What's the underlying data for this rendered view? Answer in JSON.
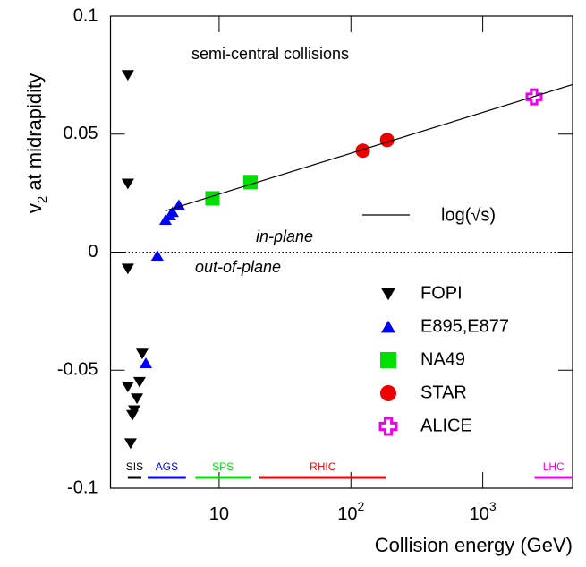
{
  "chart_data": {
    "type": "scatter",
    "log_x": true,
    "xlabel": "Collision energy (GeV)",
    "ylabel": {
      "text": "v",
      "sub": "2",
      "rest": " at midrapidity"
    },
    "xlim": [
      1.5,
      4800
    ],
    "ylim": [
      -0.1,
      0.1
    ],
    "xticks": [
      10,
      {
        "value": 100,
        "label": "10",
        "exponent": "2"
      },
      {
        "value": 1000,
        "label": "10",
        "exponent": "3"
      }
    ],
    "yticks": [
      -0.1,
      -0.05,
      0,
      0.05,
      0.1
    ],
    "annotations": [
      "semi-central collisions",
      "in-plane",
      "out-of-plane"
    ],
    "series": [
      {
        "name": "FOPI",
        "color": "#000000",
        "marker": "triangle-down",
        "x": [
          2.03,
          2.03,
          2.03,
          2.03,
          2.2,
          2.27,
          2.38,
          2.49,
          2.61,
          2.13
        ],
        "values": [
          0.075,
          0.029,
          -0.007,
          -0.057,
          -0.069,
          -0.067,
          -0.062,
          -0.055,
          -0.043,
          -0.081
        ]
      },
      {
        "name": "E895,E877",
        "color": "#0000ff",
        "marker": "triangle-up",
        "x": [
          3.4,
          2.78,
          3.92,
          4.24,
          4.44,
          4.95
        ],
        "values": [
          -0.0015,
          -0.047,
          0.0137,
          0.0156,
          0.017,
          0.02
        ]
      },
      {
        "name": "NA49",
        "color": "#00e000",
        "marker": "square",
        "x": [
          8.9,
          17.3
        ],
        "values": [
          0.0228,
          0.0297
        ]
      },
      {
        "name": "STAR",
        "color": "#ee0000",
        "marker": "circle",
        "x": [
          123,
          188
        ],
        "values": [
          0.043,
          0.0475
        ]
      },
      {
        "name": "ALICE",
        "color": "#ee00ee",
        "marker": "cross",
        "x": [
          2450
        ],
        "values": [
          0.0658
        ]
      },
      {
        "name": "log(√s)",
        "color": "#000000",
        "marker": "line",
        "x": [
          3.9,
          4800
        ],
        "values": [
          0.0175,
          0.071
        ]
      }
    ],
    "ranges": [
      {
        "label": "SIS",
        "color": "#000000",
        "x": [
          2.03,
          2.57
        ]
      },
      {
        "label": "AGS",
        "color": "#0000ff",
        "x": [
          2.87,
          5.6
        ]
      },
      {
        "label": "SPS",
        "color": "#00e000",
        "x": [
          6.6,
          17.3
        ]
      },
      {
        "label": "RHIC",
        "color": "#ee0000",
        "x": [
          20.2,
          185
        ]
      },
      {
        "label": "LHC",
        "color": "#ee00ee",
        "x": [
          2470,
          4800
        ]
      }
    ]
  }
}
